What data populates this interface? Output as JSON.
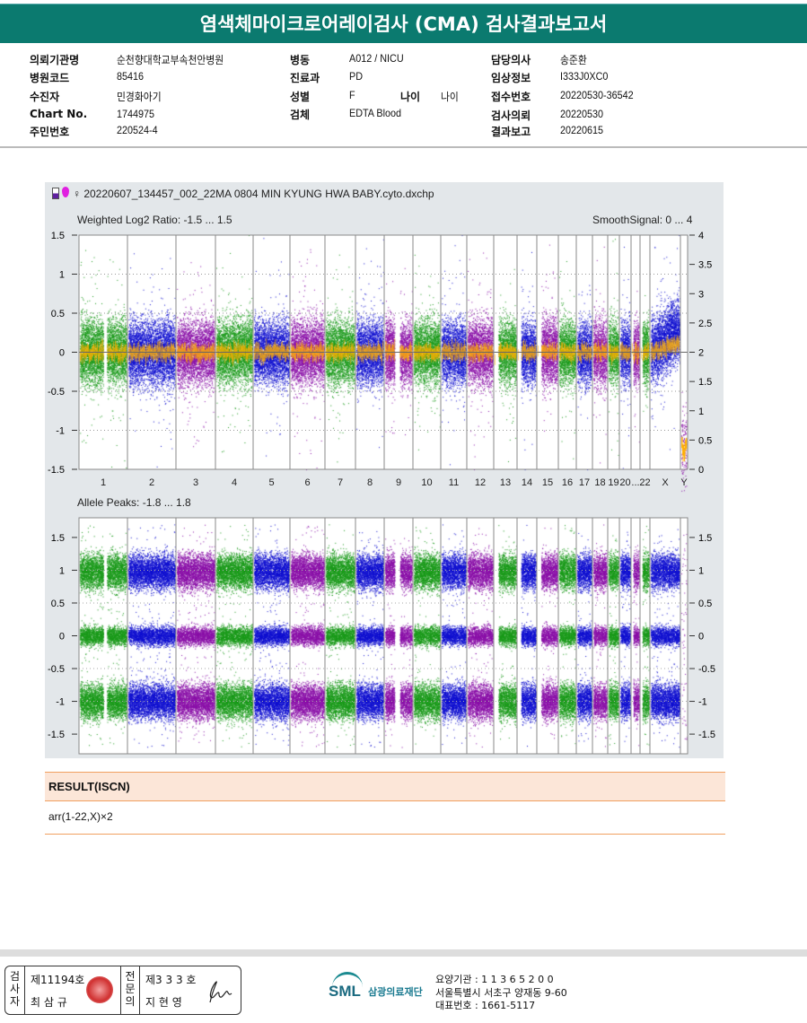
{
  "header": {
    "title": "염색체마이크로어레이검사 (CMA) 검사결과보고서"
  },
  "info": {
    "col1": [
      {
        "label": "의뢰기관명",
        "value": "순천향대학교부속천안병원"
      },
      {
        "label": "병원코드",
        "value": "85416"
      },
      {
        "label": "수진자",
        "value": "민경화아기"
      },
      {
        "label": "Chart No.",
        "value": "1744975"
      },
      {
        "label": "주민번호",
        "value": "220524-4"
      }
    ],
    "col2": [
      {
        "label": "병동",
        "value": "A012 / NICU"
      },
      {
        "label": "진료과",
        "value": "PD"
      },
      {
        "label": "성별",
        "value": "F"
      },
      {
        "label": "검체",
        "value": "EDTA Blood"
      }
    ],
    "age_label": "나이",
    "age_value": "나이",
    "col3": [
      {
        "label": "담당의사",
        "value": "송준환"
      },
      {
        "label": "임상정보",
        "value": "I333J0XC0"
      },
      {
        "label": "접수번호",
        "value": "20220530-36542"
      },
      {
        "label": "검사의뢰",
        "value": "20220530"
      },
      {
        "label": "결과보고",
        "value": "20220615"
      }
    ]
  },
  "plot": {
    "file_title": "♀ 20220607_134457_002_22MA 0804 MIN KYUNG HWA BABY.cyto.dxchp"
  },
  "chart_data": [
    {
      "type": "scatter",
      "title": "Weighted Log2 Ratio: -1.5 ... 1.5",
      "right_title": "SmoothSignal: 0 ... 4",
      "ylim": [
        -1.5,
        1.5
      ],
      "y2lim": [
        0,
        4
      ],
      "yticks": [
        "1.5",
        "1",
        "0.5",
        "0",
        "-0.5",
        "-1",
        "-1.5"
      ],
      "y2ticks": [
        "4",
        "3.5",
        "3",
        "2.5",
        "2",
        "1.5",
        "1",
        "0.5",
        "0"
      ],
      "categories": [
        "1",
        "2",
        "3",
        "4",
        "5",
        "6",
        "7",
        "8",
        "9",
        "10",
        "11",
        "12",
        "13",
        "14",
        "15",
        "16",
        "17",
        "18",
        "19",
        "20",
        "...",
        "22",
        "X",
        "Y"
      ],
      "smooth_signal_level": {
        "autosomes": 2,
        "X": 2,
        "Y": 0
      },
      "colors": [
        "#1a9a1a",
        "#1010d0",
        "#8a10a8"
      ],
      "smooth_color": "#ffb000"
    },
    {
      "type": "scatter",
      "title": "Allele Peaks: -1.8 ... 1.8",
      "ylim": [
        -1.8,
        1.8
      ],
      "yticks": [
        "1.5",
        "1",
        "0.5",
        "0",
        "-0.5",
        "-1",
        "-1.5"
      ],
      "peak_bands": [
        1,
        0,
        -1
      ]
    }
  ],
  "result": {
    "heading": "RESULT(ISCN)",
    "value": "arr(1-22,X)×2"
  },
  "footer": {
    "examiner_label": "검사자",
    "examiner_no": "제11194호",
    "examiner_name": "최 삼 규",
    "specialist_label": "전문의",
    "specialist_no": "제3 3 3 호",
    "specialist_name": "지 현 영",
    "org_logo": "SML",
    "org_name": "삼광의료재단",
    "org_code": "요양기관 : 1 1 3 6 5 2 0 0",
    "address": "서울특별시 서초구 양재동 9-60",
    "phone": "대표번호 : 1661-5117"
  }
}
